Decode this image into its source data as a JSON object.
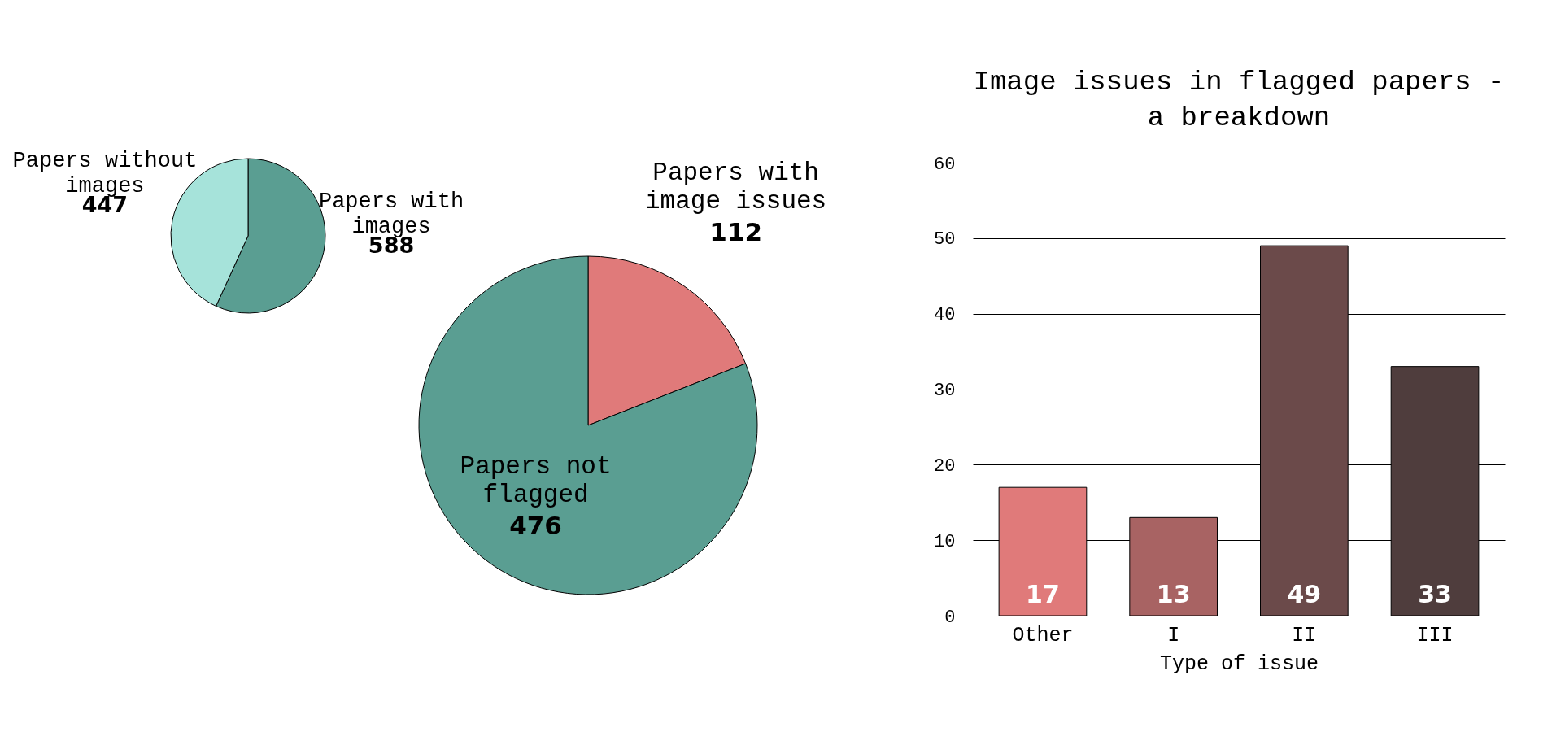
{
  "chart_data": [
    {
      "type": "pie",
      "categories": [
        "Papers with images",
        "Papers without images"
      ],
      "values": [
        588,
        447
      ],
      "colors": [
        "#5a9e92",
        "#a6e3da"
      ],
      "data_labels": true
    },
    {
      "type": "pie",
      "categories": [
        "Papers with image issues",
        "Papers not flagged"
      ],
      "values": [
        112,
        476
      ],
      "colors": [
        "#e07a7a",
        "#5a9e92"
      ],
      "data_labels": true
    },
    {
      "type": "bar",
      "title": "Image issues in flagged papers - a breakdown",
      "xlabel": "Type of issue",
      "categories": [
        "Other",
        "I",
        "II",
        "III"
      ],
      "values": [
        17,
        13,
        49,
        33
      ],
      "colors": [
        "#e07a7a",
        "#a86363",
        "#6b4a4a",
        "#4f3d3d"
      ],
      "ylim": [
        0,
        60
      ],
      "yticks": [
        0,
        10,
        20,
        30,
        40,
        50,
        60
      ],
      "grid": "y",
      "data_labels": true
    }
  ]
}
